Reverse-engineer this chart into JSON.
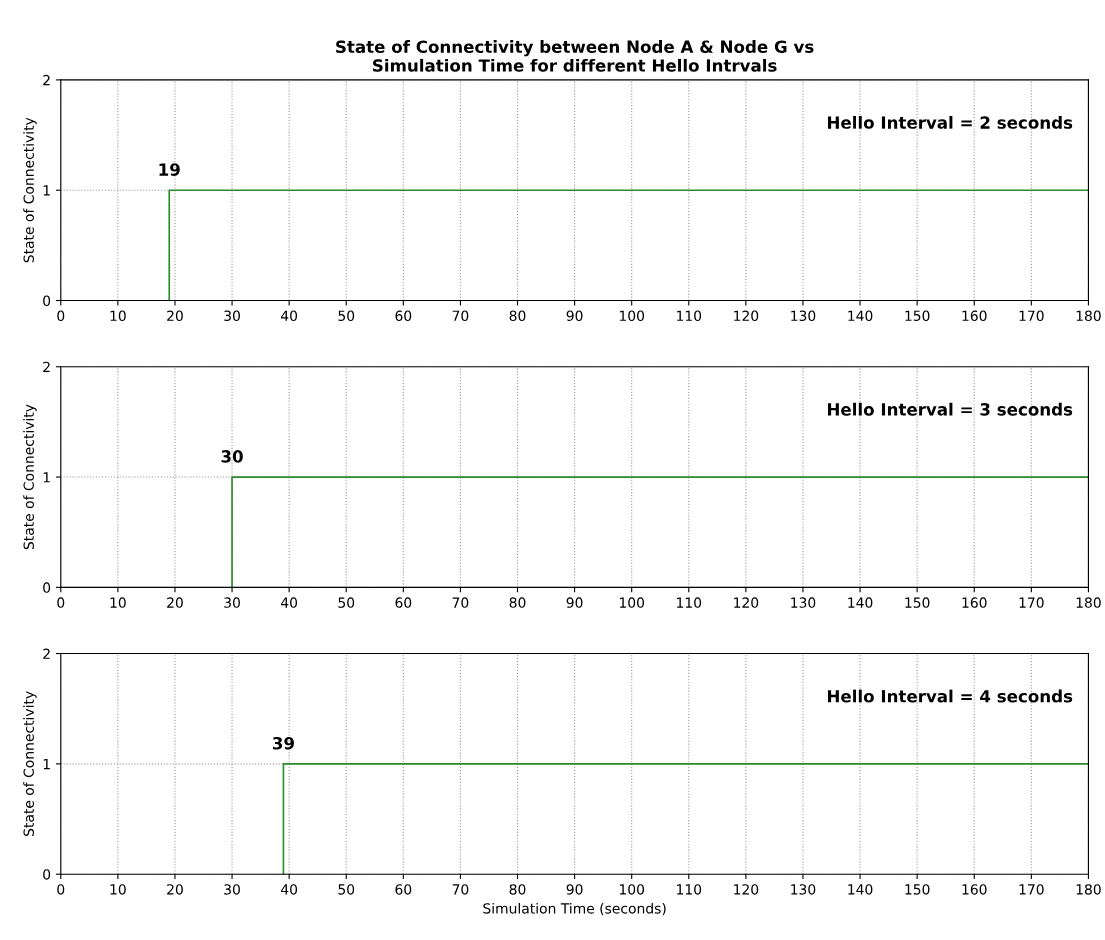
{
  "chart_data": [
    {
      "type": "line",
      "title": "State of Connectivity between Node A & Node G vs\nSimulation Time for different Hello Intrvals",
      "ylabel": "State of Connectivity",
      "xlim": [
        0,
        180
      ],
      "ylim": [
        0,
        2
      ],
      "xticks": [
        0,
        10,
        20,
        30,
        40,
        50,
        60,
        70,
        80,
        90,
        100,
        110,
        120,
        130,
        140,
        150,
        160,
        170,
        180
      ],
      "yticks": [
        0,
        1,
        2
      ],
      "grid": true,
      "series": [
        {
          "color": "#2e8b2e",
          "x": [
            19,
            19,
            180
          ],
          "values": [
            0,
            1,
            1
          ]
        }
      ],
      "annotations": [
        {
          "text": "19",
          "x": 19,
          "y": 1
        },
        "Hello Interval = 2 seconds"
      ]
    },
    {
      "type": "line",
      "ylabel": "State of Connectivity",
      "xlim": [
        0,
        180
      ],
      "ylim": [
        0,
        2
      ],
      "xticks": [
        0,
        10,
        20,
        30,
        40,
        50,
        60,
        70,
        80,
        90,
        100,
        110,
        120,
        130,
        140,
        150,
        160,
        170,
        180
      ],
      "yticks": [
        0,
        1,
        2
      ],
      "grid": true,
      "series": [
        {
          "color": "#2e8b2e",
          "x": [
            30,
            30,
            180
          ],
          "values": [
            0,
            1,
            1
          ]
        }
      ],
      "annotations": [
        {
          "text": "30",
          "x": 30,
          "y": 1
        },
        "Hello Interval = 3 seconds"
      ]
    },
    {
      "type": "line",
      "xlabel": "Simulation Time (seconds)",
      "ylabel": "State of Connectivity",
      "xlim": [
        0,
        180
      ],
      "ylim": [
        0,
        2
      ],
      "xticks": [
        0,
        10,
        20,
        30,
        40,
        50,
        60,
        70,
        80,
        90,
        100,
        110,
        120,
        130,
        140,
        150,
        160,
        170,
        180
      ],
      "yticks": [
        0,
        1,
        2
      ],
      "grid": true,
      "series": [
        {
          "color": "#2e8b2e",
          "x": [
            39,
            39,
            180
          ],
          "values": [
            0,
            1,
            1
          ]
        }
      ],
      "annotations": [
        {
          "text": "39",
          "x": 39,
          "y": 1
        },
        "Hello Interval = 4 seconds"
      ]
    }
  ]
}
